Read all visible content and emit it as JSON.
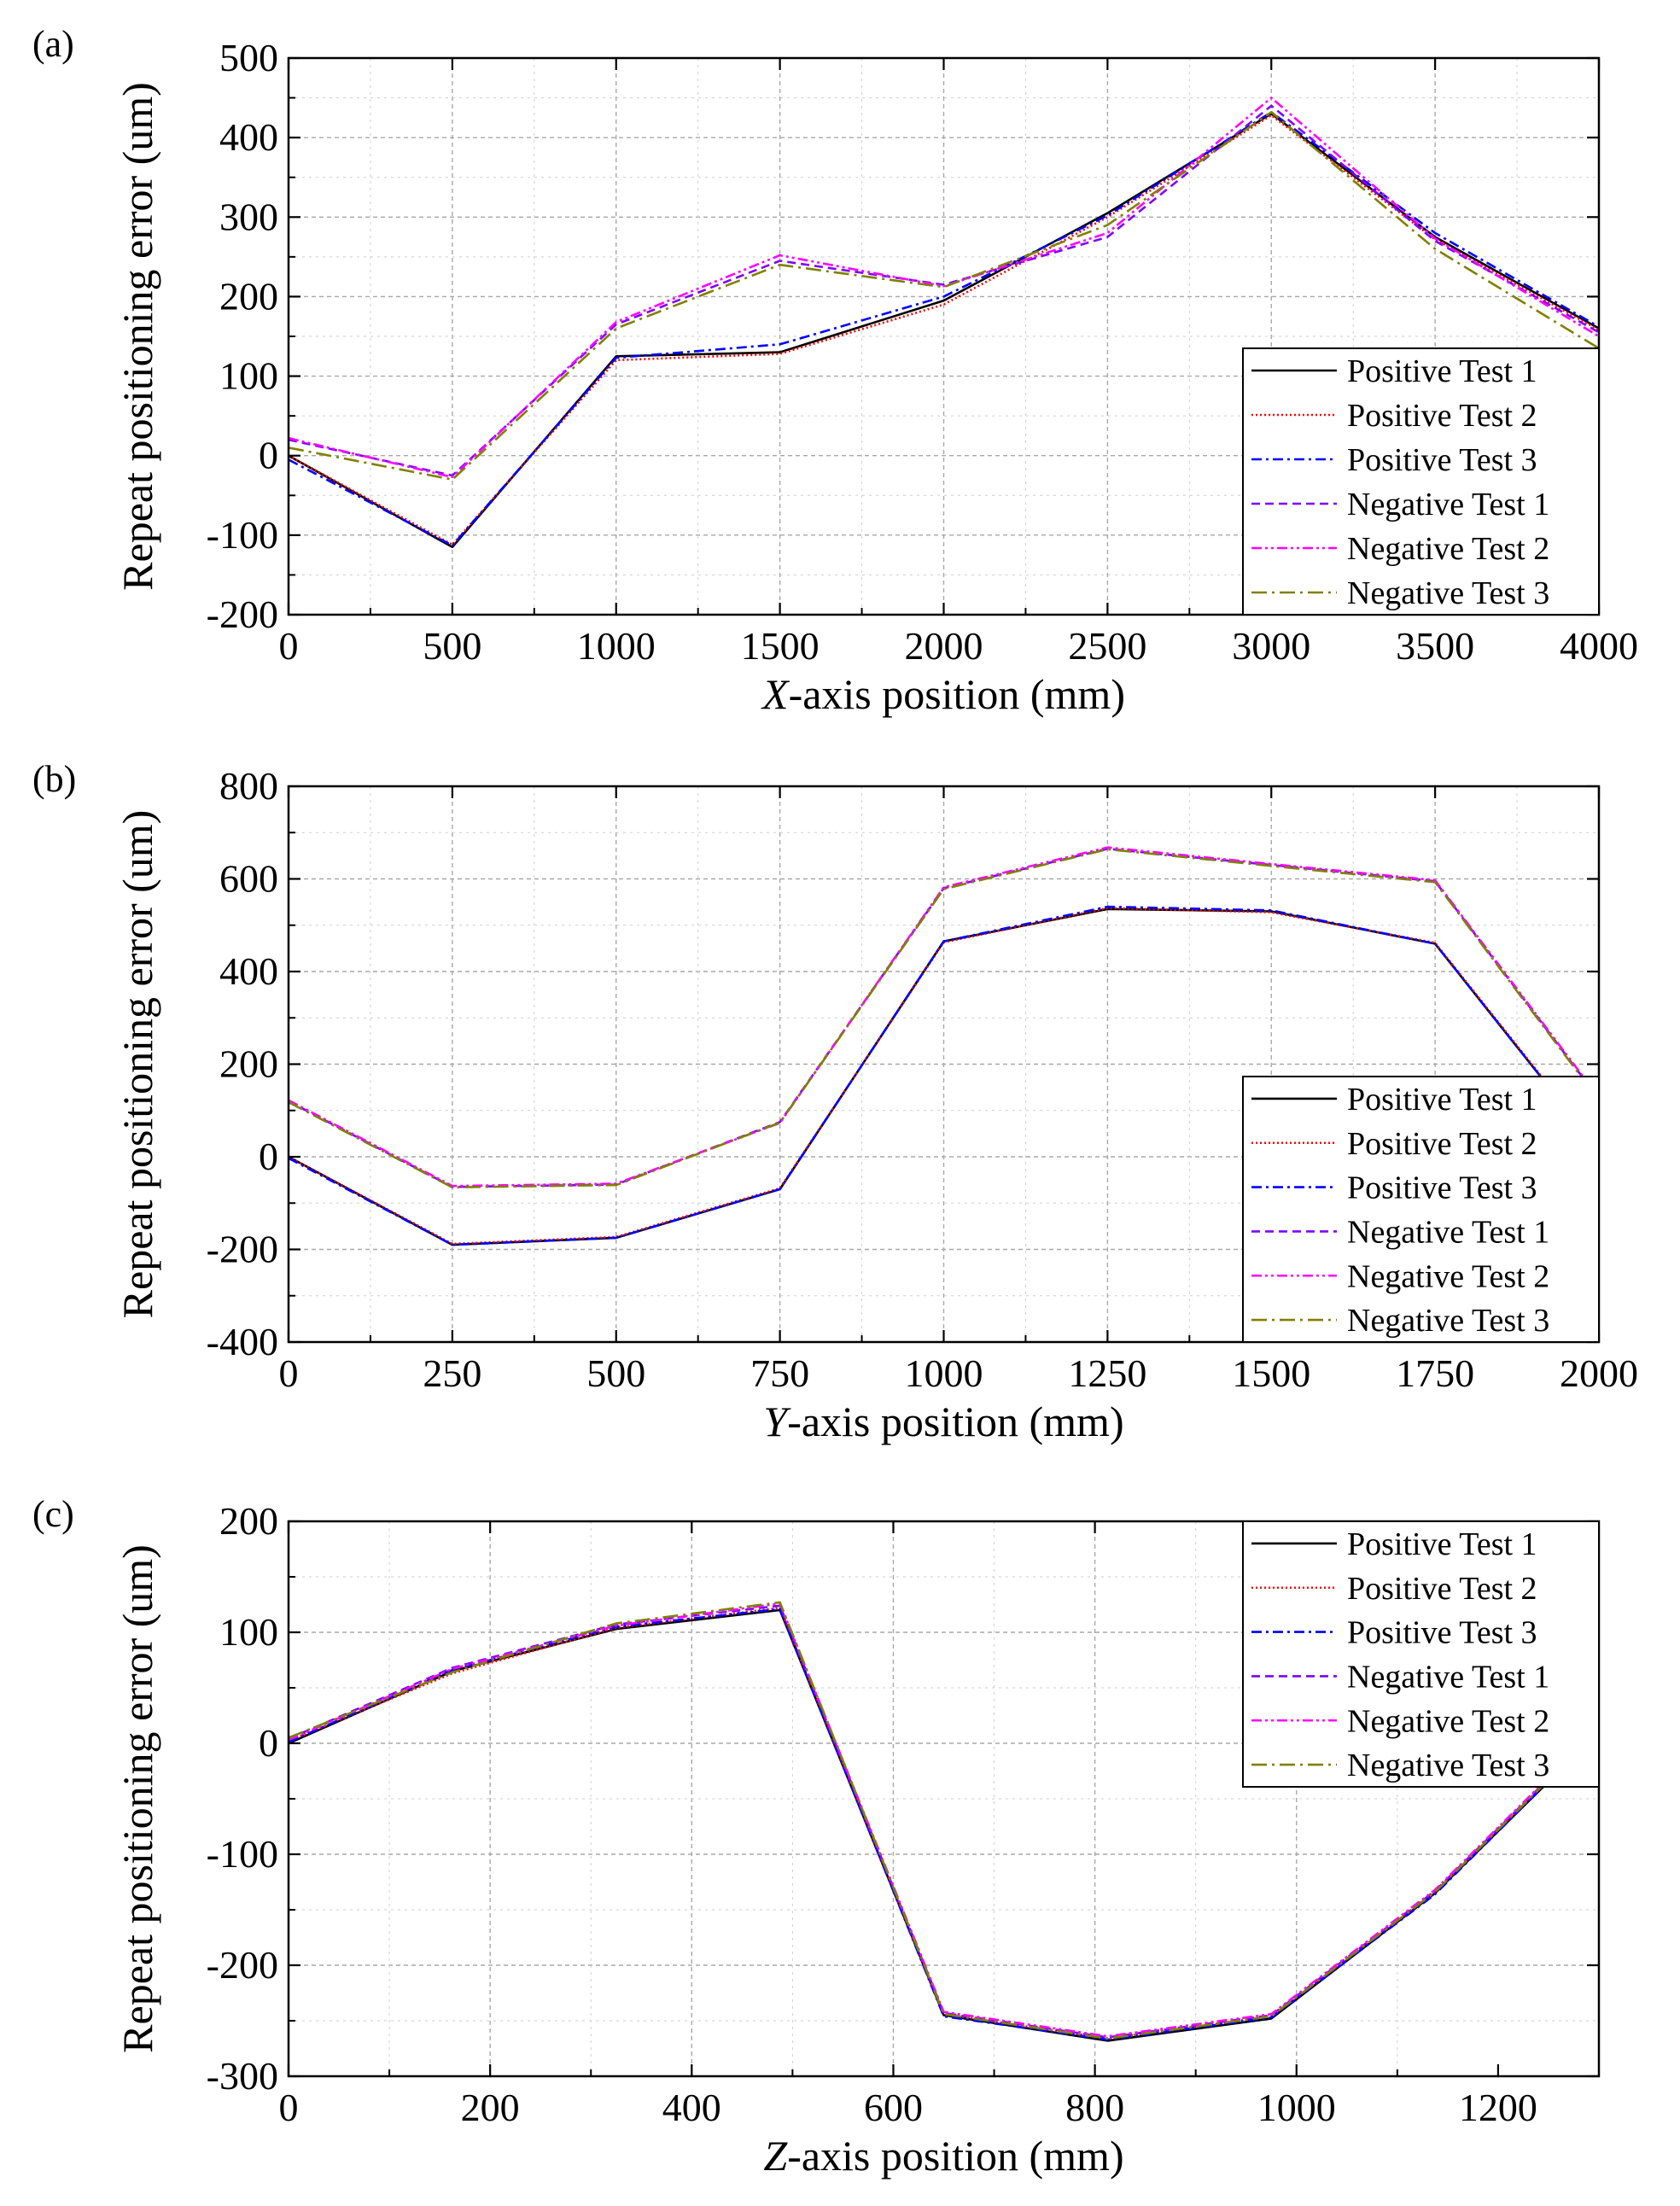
{
  "chart_data": [
    {
      "type": "line",
      "panel_label": "(a)",
      "xlabel_italic": "X",
      "xlabel_rest": "-axis position (mm)",
      "ylabel": "Repeat positioning error (um)",
      "xlim": [
        0,
        4000
      ],
      "ylim": [
        -200,
        500
      ],
      "xticks": [
        0,
        500,
        1000,
        1500,
        2000,
        2500,
        3000,
        3500,
        4000
      ],
      "yticks": [
        -200,
        -100,
        0,
        100,
        200,
        300,
        400,
        500
      ],
      "grid": true,
      "legend_position": "bottom-right",
      "x": [
        0,
        500,
        1000,
        1500,
        2000,
        2500,
        3000,
        3500,
        4000
      ],
      "series": [
        {
          "name": "Positive Test 1",
          "color": "#000000",
          "dash": "solid",
          "values": [
            0,
            -115,
            125,
            130,
            195,
            305,
            430,
            275,
            160
          ]
        },
        {
          "name": "Positive Test 2",
          "color": "#ff0000",
          "dash": "dot",
          "values": [
            0,
            -112,
            120,
            128,
            190,
            300,
            428,
            272,
            158
          ]
        },
        {
          "name": "Positive Test 3",
          "color": "#0000ff",
          "dash": "dashdot",
          "values": [
            -5,
            -113,
            123,
            140,
            200,
            302,
            432,
            280,
            162
          ]
        },
        {
          "name": "Negative Test 1",
          "color": "#7f00ff",
          "dash": "dash",
          "values": [
            20,
            -25,
            165,
            245,
            215,
            275,
            440,
            270,
            155
          ]
        },
        {
          "name": "Negative Test 2",
          "color": "#ff00ff",
          "dash": "dashdotdot",
          "values": [
            22,
            -27,
            168,
            252,
            213,
            280,
            450,
            273,
            150
          ]
        },
        {
          "name": "Negative Test 3",
          "color": "#808000",
          "dash": "longdashdot",
          "values": [
            10,
            -30,
            160,
            240,
            212,
            290,
            432,
            260,
            135
          ]
        }
      ]
    },
    {
      "type": "line",
      "panel_label": "(b)",
      "xlabel_italic": "Y",
      "xlabel_rest": "-axis position (mm)",
      "ylabel": "Repeat positioning error (um)",
      "xlim": [
        0,
        2000
      ],
      "ylim": [
        -400,
        800
      ],
      "xticks": [
        0,
        250,
        500,
        750,
        1000,
        1250,
        1500,
        1750,
        2000
      ],
      "yticks": [
        -400,
        -200,
        0,
        200,
        400,
        600,
        800
      ],
      "grid": true,
      "legend_position": "bottom-right",
      "x": [
        0,
        250,
        500,
        750,
        1000,
        1250,
        1500,
        1750,
        2000
      ],
      "series": [
        {
          "name": "Positive Test 1",
          "color": "#000000",
          "dash": "solid",
          "values": [
            0,
            -190,
            -175,
            -70,
            465,
            535,
            530,
            460,
            15
          ]
        },
        {
          "name": "Positive Test 2",
          "color": "#ff0000",
          "dash": "dot",
          "values": [
            0,
            -188,
            -173,
            -68,
            463,
            537,
            528,
            462,
            18
          ]
        },
        {
          "name": "Positive Test 3",
          "color": "#0000ff",
          "dash": "dashdot",
          "values": [
            -3,
            -190,
            -175,
            -70,
            465,
            540,
            532,
            460,
            15
          ]
        },
        {
          "name": "Negative Test 1",
          "color": "#7f00ff",
          "dash": "dash",
          "values": [
            120,
            -65,
            -60,
            75,
            580,
            665,
            630,
            595,
            125
          ]
        },
        {
          "name": "Negative Test 2",
          "color": "#ff00ff",
          "dash": "dashdotdot",
          "values": [
            122,
            -63,
            -58,
            73,
            582,
            668,
            632,
            597,
            128
          ]
        },
        {
          "name": "Negative Test 3",
          "color": "#808000",
          "dash": "longdashdot",
          "values": [
            118,
            -66,
            -61,
            74,
            578,
            664,
            628,
            593,
            122
          ]
        }
      ]
    },
    {
      "type": "line",
      "panel_label": "(c)",
      "xlabel_italic": "Z",
      "xlabel_rest": "-axis position (mm)",
      "ylabel": "Repeat positioning error (um)",
      "xlim": [
        0,
        1300
      ],
      "ylim": [
        -300,
        200
      ],
      "xticks": [
        0,
        200,
        400,
        600,
        800,
        1000,
        1200
      ],
      "yticks": [
        -300,
        -200,
        -100,
        0,
        100,
        200
      ],
      "grid": true,
      "legend_position": "top-right",
      "x": [
        0,
        162.5,
        325,
        487.5,
        650,
        812.5,
        975,
        1137.5,
        1300
      ],
      "series": [
        {
          "name": "Positive Test 1",
          "color": "#000000",
          "dash": "solid",
          "values": [
            0,
            65,
            103,
            120,
            -245,
            -268,
            -248,
            -135,
            10
          ]
        },
        {
          "name": "Positive Test 2",
          "color": "#ff0000",
          "dash": "dot",
          "values": [
            2,
            63,
            104,
            122,
            -244,
            -266,
            -246,
            -134,
            12
          ]
        },
        {
          "name": "Positive Test 3",
          "color": "#0000ff",
          "dash": "dashdot",
          "values": [
            1,
            66,
            105,
            121,
            -246,
            -267,
            -247,
            -136,
            11
          ]
        },
        {
          "name": "Negative Test 1",
          "color": "#7f00ff",
          "dash": "dash",
          "values": [
            4,
            68,
            107,
            124,
            -243,
            -265,
            -245,
            -133,
            13
          ]
        },
        {
          "name": "Negative Test 2",
          "color": "#ff00ff",
          "dash": "dashdotdot",
          "values": [
            3,
            67,
            106,
            126,
            -242,
            -264,
            -244,
            -132,
            14
          ]
        },
        {
          "name": "Negative Test 3",
          "color": "#808000",
          "dash": "longdashdot",
          "values": [
            5,
            64,
            108,
            127,
            -244,
            -266,
            -246,
            -134,
            12
          ]
        }
      ]
    }
  ]
}
